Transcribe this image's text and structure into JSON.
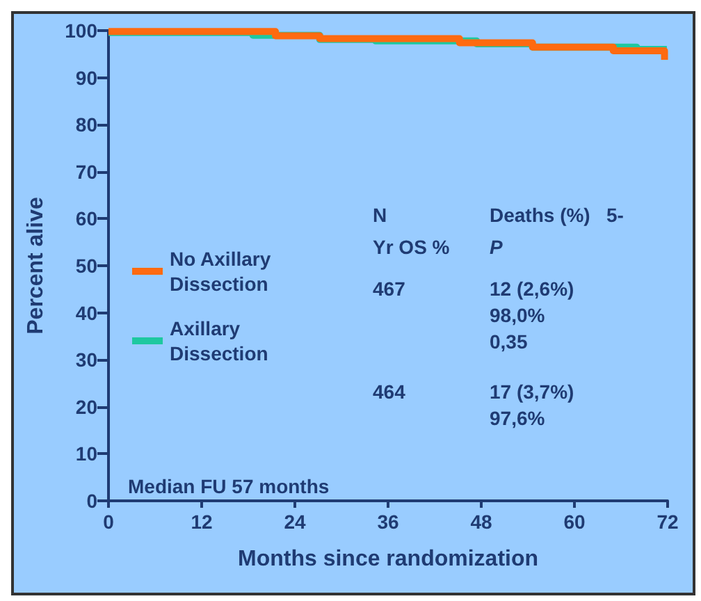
{
  "chart_data": {
    "type": "step",
    "xlabel": "Months since randomization",
    "ylabel": "Percent alive",
    "xlim": [
      0,
      72
    ],
    "ylim": [
      0,
      100
    ],
    "xticks": [
      0,
      12,
      24,
      36,
      48,
      60,
      72
    ],
    "yticks": [
      0,
      10,
      20,
      30,
      40,
      50,
      60,
      70,
      80,
      90,
      100
    ],
    "legend": "left",
    "grid": false,
    "line_style": "solid",
    "marker": "none",
    "series": [
      {
        "name": "Axillary Dissection",
        "color": "#1ec8a0",
        "x": [
          0,
          18.6,
          27.2,
          34.4,
          47.4,
          54.6,
          68,
          71.9
        ],
        "values": [
          99.6,
          99,
          98.1,
          97.8,
          97.2,
          96.5,
          96,
          96
        ]
      },
      {
        "name": "No Axillary Dissection",
        "color": "#ff6a10",
        "x": [
          0,
          21.5,
          27.2,
          45.2,
          54.6,
          65,
          71.3,
          71.6
        ],
        "values": [
          99.8,
          98.9,
          98.3,
          97.4,
          96.5,
          95.7,
          95.7,
          93.8
        ]
      }
    ],
    "annotations": [
      "N",
      "Deaths (%)   5-",
      "Yr OS %",
      "P",
      "467",
      "12 (2,6%)\n98,0%\n0,35",
      "464",
      "17 (3,7%)\n97,6%",
      "Median FU 57 months"
    ]
  }
}
